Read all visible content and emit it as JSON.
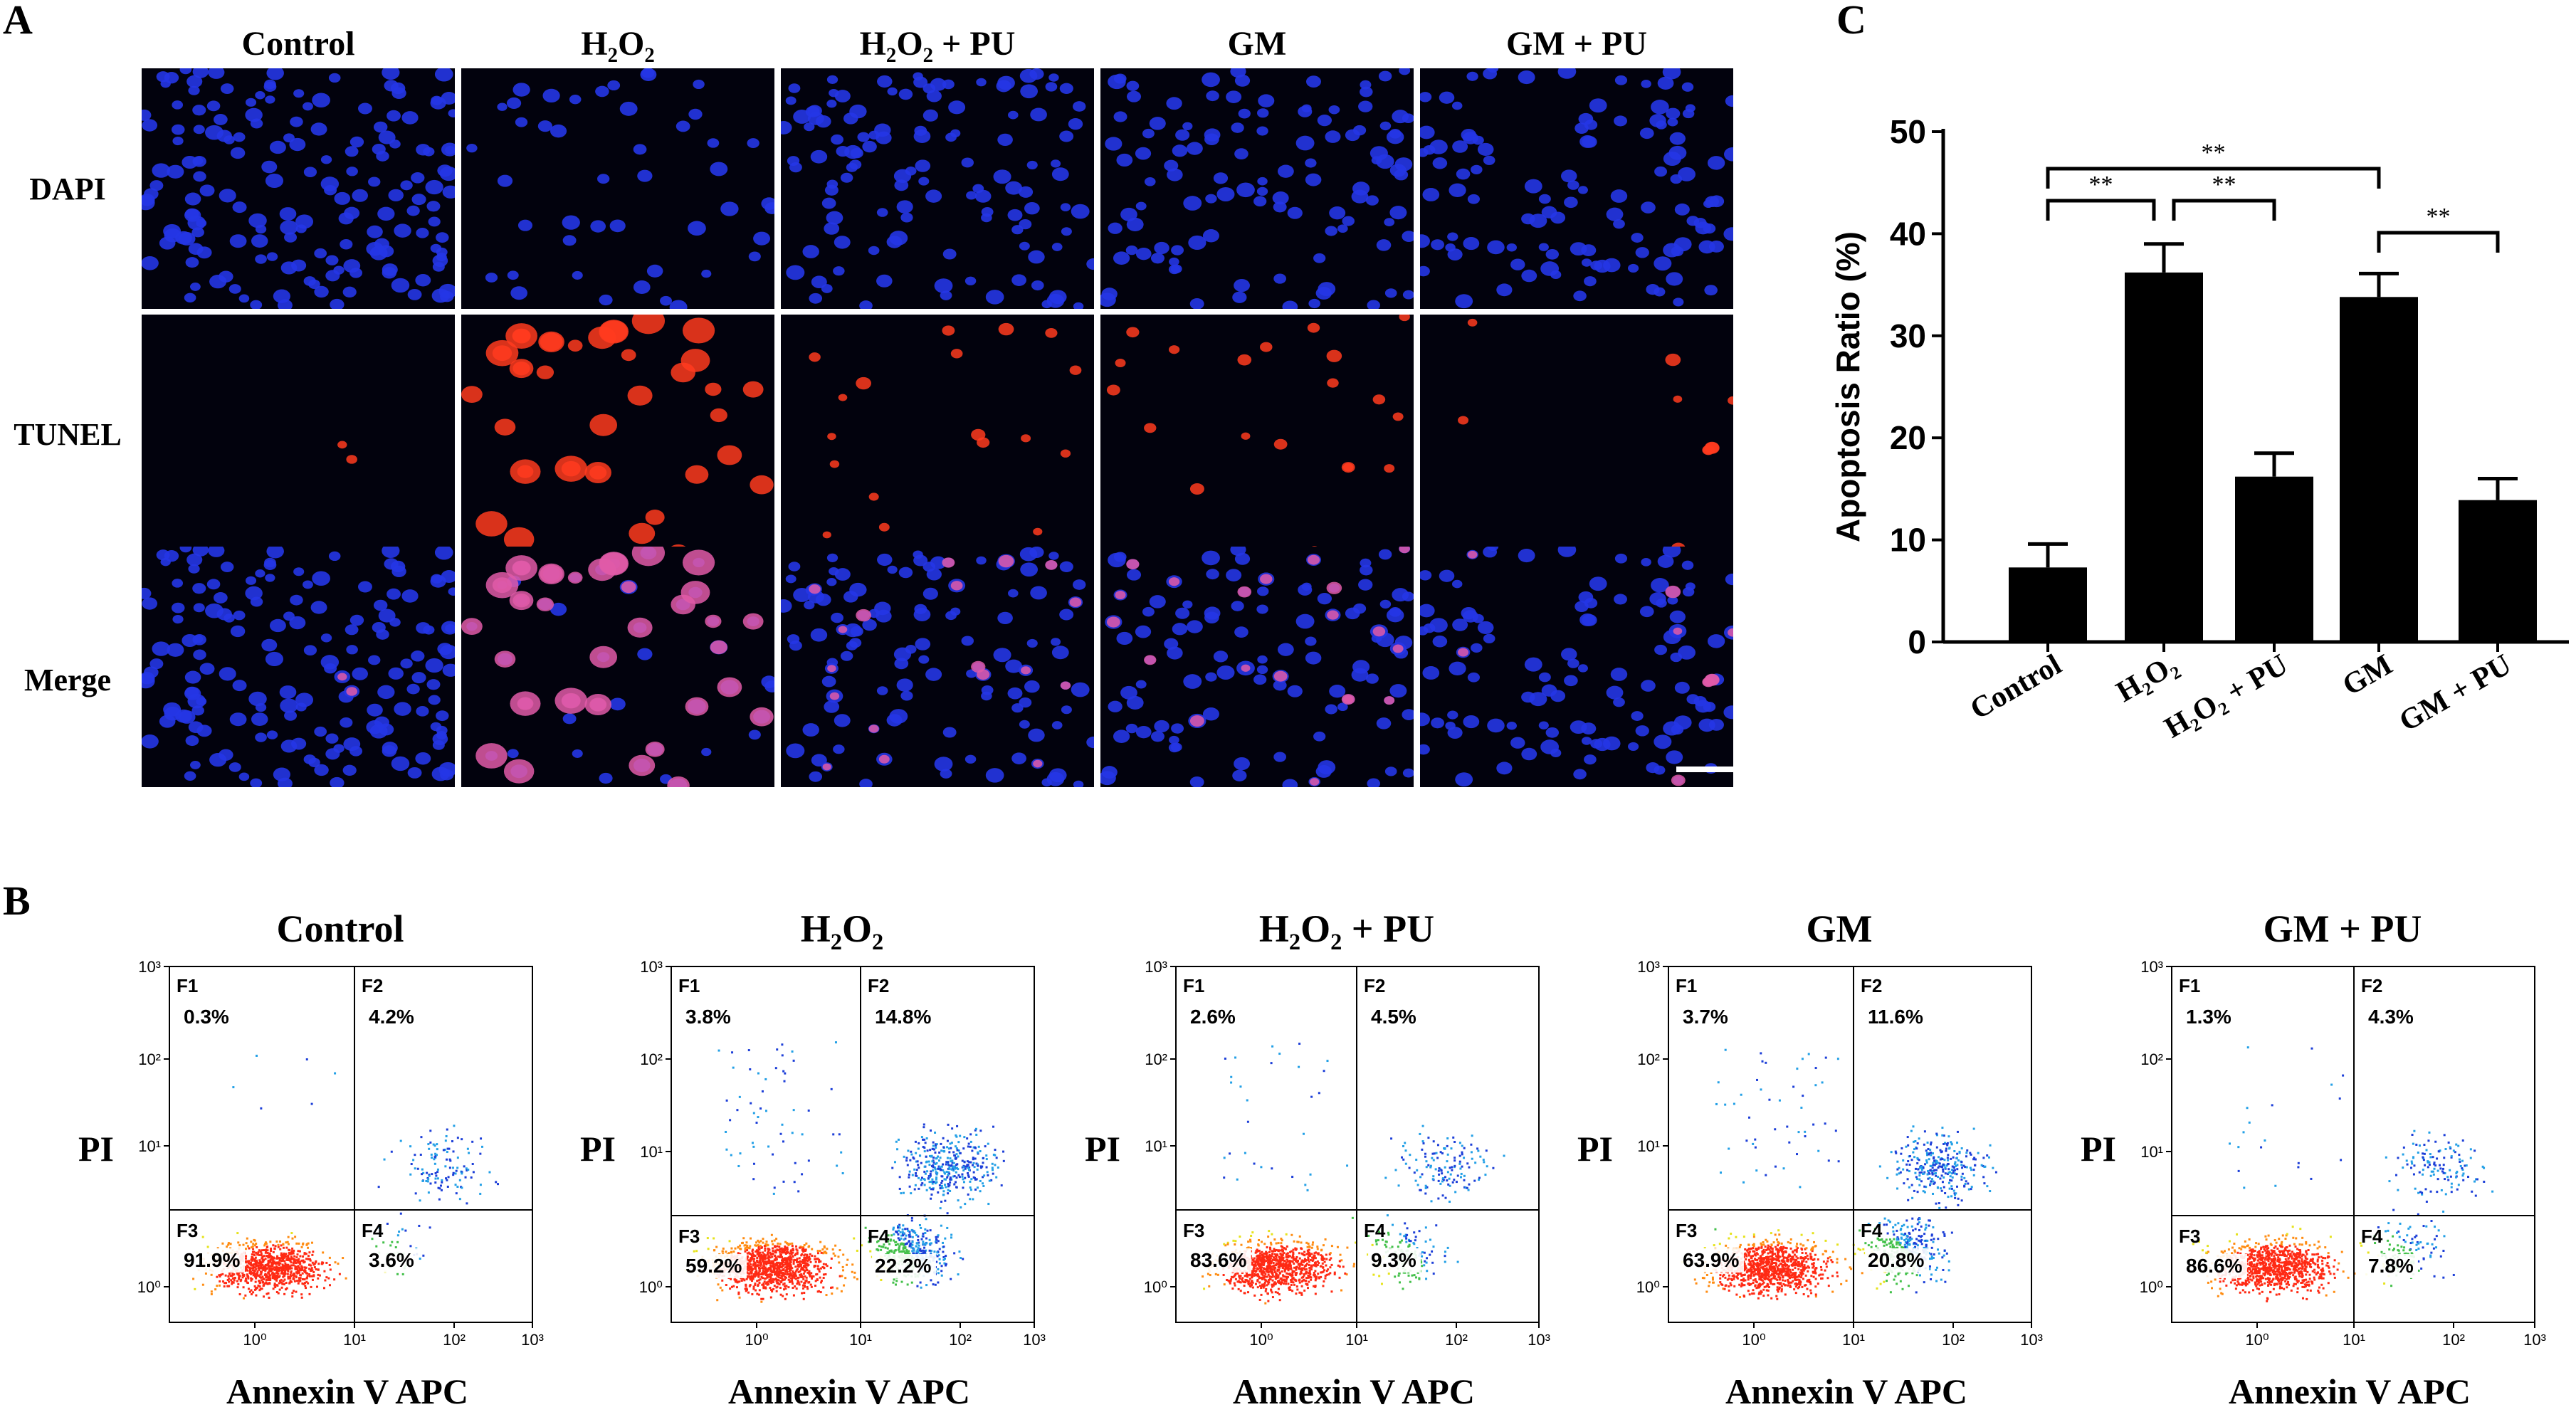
{
  "panels": {
    "a": "A",
    "b": "B",
    "c": "C"
  },
  "groups": [
    "Control",
    "H₂O₂",
    "H₂O₂ + PU",
    "GM",
    "GM + PU"
  ],
  "rows": [
    "DAPI",
    "TUNEL",
    "Merge"
  ],
  "colors": {
    "dapi": "#2536e6",
    "tunel": "#ff3b1f",
    "background": "#02020d"
  },
  "flow": {
    "xlabel": "Annexin V APC",
    "ylabel": "PI",
    "xticks": [
      "10⁰",
      "10¹",
      "10²",
      "10³"
    ],
    "yticks": [
      "10⁰",
      "10¹",
      "10²",
      "10³"
    ],
    "quadrant_labels": [
      "F1",
      "F2",
      "F3",
      "F4"
    ],
    "plots": [
      {
        "title": "Control",
        "F1": "0.3%",
        "F2": "4.2%",
        "F3": "91.9%",
        "F4": "3.6%"
      },
      {
        "title": "H₂O₂",
        "F1": "3.8%",
        "F2": "14.8%",
        "F3": "59.2%",
        "F4": "22.2%"
      },
      {
        "title": "H₂O₂ + PU",
        "F1": "2.6%",
        "F2": "4.5%",
        "F3": "83.6%",
        "F4": "9.3%"
      },
      {
        "title": "GM",
        "F1": "3.7%",
        "F2": "11.6%",
        "F3": "63.9%",
        "F4": "20.8%"
      },
      {
        "title": "GM + PU",
        "F1": "1.3%",
        "F2": "4.3%",
        "F3": "86.6%",
        "F4": "7.8%"
      }
    ]
  },
  "chart_data": {
    "type": "bar",
    "categories": [
      "Control",
      "H₂O₂",
      "H₂O₂ + PU",
      "GM",
      "GM + PU"
    ],
    "values": [
      7.3,
      36.2,
      16.2,
      33.8,
      13.9
    ],
    "errors": [
      2.3,
      2.8,
      2.3,
      2.3,
      2.1
    ],
    "ylabel": "Apoptosis Ratio (%)",
    "ylim": [
      0,
      50
    ],
    "yticks": [
      "0",
      "10",
      "20",
      "30",
      "40",
      "50"
    ],
    "bar_color": "#000000",
    "significance": [
      {
        "pair": [
          0,
          1
        ],
        "label": "**"
      },
      {
        "pair": [
          1,
          2
        ],
        "label": "**"
      },
      {
        "pair": [
          0,
          3
        ],
        "label": "**"
      },
      {
        "pair": [
          3,
          4
        ],
        "label": "**"
      }
    ]
  }
}
